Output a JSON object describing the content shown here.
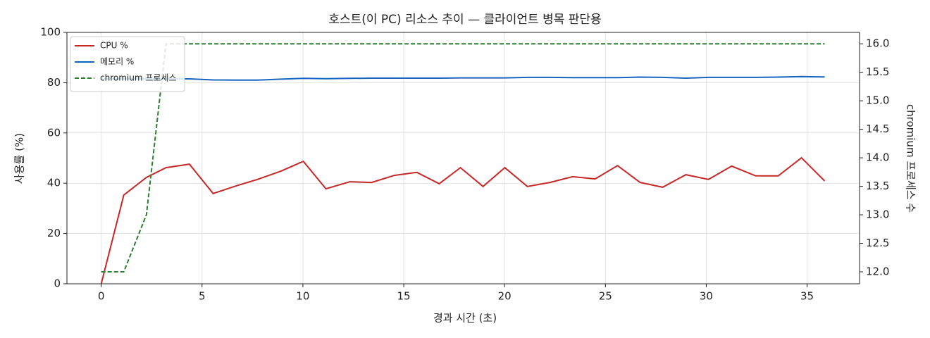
{
  "chart_data": {
    "type": "line",
    "title": "호스트(이 PC) 리소스 추이 — 클라이언트 병목 판단용",
    "x_label": "경과 시간 (초)",
    "y_label": "사용률 (%)",
    "y2_label": "chromium 프로세스 수",
    "x": [
      0,
      1.12,
      2.24,
      3.21,
      4.37,
      5.55,
      6.71,
      7.75,
      8.91,
      10.02,
      11.14,
      12.33,
      13.41,
      14.53,
      15.65,
      16.76,
      17.81,
      18.93,
      20.01,
      21.13,
      22.25,
      23.37,
      24.49,
      25.6,
      26.72,
      27.84,
      28.99,
      30.11,
      31.26,
      32.45,
      33.57,
      34.72,
      35.87
    ],
    "series": [
      {
        "name": "CPU %",
        "color": "#c62828",
        "dash": false,
        "values": [
          0,
          35.3,
          42.3,
          46.2,
          47.6,
          35.9,
          39,
          41.5,
          44.8,
          48.7,
          37.8,
          40.6,
          40.3,
          43.1,
          44.3,
          39.8,
          46.2,
          38.7,
          46.2,
          38.7,
          40.3,
          42.6,
          41.7,
          47,
          40.3,
          38.4,
          43.4,
          41.5,
          46.8,
          42.9,
          42.9,
          50.1,
          40.9
        ]
      },
      {
        "name": "메모리 %",
        "color": "#1565c0",
        "dash": false,
        "values": [
          81.5,
          81.5,
          81.5,
          81.5,
          81.5,
          81.1,
          81,
          81,
          81.4,
          81.7,
          81.6,
          81.7,
          81.8,
          81.8,
          81.8,
          81.8,
          81.9,
          81.9,
          81.9,
          82.1,
          82.1,
          82,
          82,
          82,
          82.2,
          82.1,
          81.8,
          82.1,
          82.1,
          82.1,
          82.2,
          82.4,
          82.3
        ]
      },
      {
        "name": "chromium 프로세스",
        "color": "#2e7d32",
        "dash": true,
        "axis": "y2",
        "values": [
          12,
          12,
          13,
          16,
          16,
          16,
          16,
          16,
          16,
          16,
          16,
          16,
          16,
          16,
          16,
          16,
          16,
          16,
          16,
          16,
          16,
          16,
          16,
          16,
          16,
          16,
          16,
          16,
          16,
          16,
          16,
          16,
          16
        ]
      }
    ],
    "xlim": [
      -1.7,
      37.6
    ],
    "xticks": [
      0,
      5,
      10,
      15,
      20,
      25,
      30,
      35
    ],
    "ylim": [
      0,
      100
    ],
    "yticks": [
      0,
      20,
      40,
      60,
      80,
      100
    ],
    "y2lim": [
      11.79,
      16.2
    ],
    "y2ticks": [
      {
        "value": 12,
        "label": "12.0"
      },
      {
        "value": 12.5,
        "label": "12.5"
      },
      {
        "value": 13,
        "label": "13.0"
      },
      {
        "value": 13.5,
        "label": "13.5"
      },
      {
        "value": 14,
        "label": "14.0"
      },
      {
        "value": 14.5,
        "label": "14.5"
      },
      {
        "value": 15,
        "label": "15.0"
      },
      {
        "value": 15.5,
        "label": "15.5"
      },
      {
        "value": 16,
        "label": "16.0"
      }
    ],
    "grid": true,
    "legend": "upper-left"
  }
}
